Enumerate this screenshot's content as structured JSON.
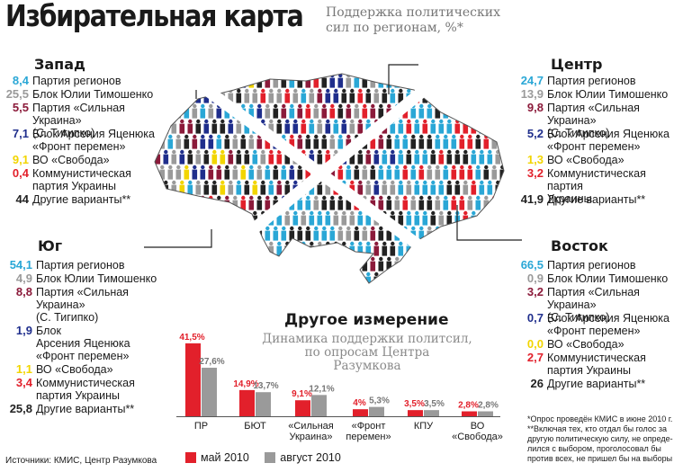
{
  "header": {
    "title": "Избирательная карта",
    "subtitle_line1": "Поддержка политических",
    "subtitle_line2": "сил по регионам, %*"
  },
  "colors": {
    "party_regions": "#2aa7d6",
    "tymoshenko": "#9a9a9a",
    "tigipko": "#8b1a3a",
    "yatsenyuk": "#1f2e8c",
    "svoboda": "#f2d500",
    "kpu": "#e2202b",
    "other": "#222222",
    "may": "#e2202b",
    "august": "#9a9a9a"
  },
  "regions": [
    {
      "title": "Запад",
      "rows": [
        {
          "value": "8,4",
          "label_lines": [
            "Партия регионов"
          ],
          "color": "party_regions"
        },
        {
          "value": "25,5",
          "label_lines": [
            "Блок Юлии Тимошенко"
          ],
          "color": "tymoshenko"
        },
        {
          "value": "5,5",
          "label_lines": [
            "Партия «Сильная Украина»",
            "(С. Тигипко)"
          ],
          "color": "tigipko"
        },
        {
          "value": "7,1",
          "label_lines": [
            "Блок Арсения Яценюка",
            "«Фронт перемен»"
          ],
          "color": "yatsenyuk"
        },
        {
          "value": "9,1",
          "label_lines": [
            "ВО «Свобода»"
          ],
          "color": "svoboda"
        },
        {
          "value": "0,4",
          "label_lines": [
            "Коммунистическая",
            "партия Украины"
          ],
          "color": "kpu"
        },
        {
          "value": "44",
          "label_lines": [
            "Другие варианты**"
          ],
          "color": "other"
        }
      ]
    },
    {
      "title": "Центр",
      "rows": [
        {
          "value": "24,7",
          "label_lines": [
            "Партия регионов"
          ],
          "color": "party_regions"
        },
        {
          "value": "13,9",
          "label_lines": [
            "Блок Юлии Тимошенко"
          ],
          "color": "tymoshenko"
        },
        {
          "value": "9,8",
          "label_lines": [
            "Партия «Сильная Украина»",
            "(С. Тигипко)"
          ],
          "color": "tigipko"
        },
        {
          "value": "5,2",
          "label_lines": [
            "Блок Арсения Яценюка",
            "«Фронт перемен»"
          ],
          "color": "yatsenyuk"
        },
        {
          "value": "1,3",
          "label_lines": [
            "ВО «Свобода»"
          ],
          "color": "svoboda"
        },
        {
          "value": "3,2",
          "label_lines": [
            "Коммунистическая партия",
            "Украины"
          ],
          "color": "kpu"
        },
        {
          "value": "41,9",
          "label_lines": [
            "Другие варианты**"
          ],
          "color": "other"
        }
      ]
    },
    {
      "title": "Юг",
      "rows": [
        {
          "value": "54,1",
          "label_lines": [
            "Партия регионов"
          ],
          "color": "party_regions"
        },
        {
          "value": "4,9",
          "label_lines": [
            "Блок Юлии Тимошенко"
          ],
          "color": "tymoshenko"
        },
        {
          "value": "8,8",
          "label_lines": [
            "Партия «Сильная",
            "Украина»",
            "(С. Тигипко)"
          ],
          "color": "tigipko"
        },
        {
          "value": "1,9",
          "label_lines": [
            "Блок",
            "Арсения Яценюка",
            "«Фронт перемен»"
          ],
          "color": "yatsenyuk"
        },
        {
          "value": "1,1",
          "label_lines": [
            "ВО «Свобода»"
          ],
          "color": "svoboda"
        },
        {
          "value": "3,4",
          "label_lines": [
            "Коммунистическая",
            "партия Украины"
          ],
          "color": "kpu"
        },
        {
          "value": "25,8",
          "label_lines": [
            "Другие варианты**"
          ],
          "color": "other"
        }
      ]
    },
    {
      "title": "Восток",
      "rows": [
        {
          "value": "66,5",
          "label_lines": [
            "Партия регионов"
          ],
          "color": "party_regions"
        },
        {
          "value": "0,9",
          "label_lines": [
            "Блок Юлии Тимошенко"
          ],
          "color": "tymoshenko"
        },
        {
          "value": "3,2",
          "label_lines": [
            "Партия «Сильная Украина»",
            "(С. Тигипко)"
          ],
          "color": "tigipko"
        },
        {
          "value": "0,7",
          "label_lines": [
            "Блок Арсения Яценюка",
            "«Фронт перемен»"
          ],
          "color": "yatsenyuk"
        },
        {
          "value": "0,0",
          "label_lines": [
            "ВО «Свобода»"
          ],
          "color": "svoboda"
        },
        {
          "value": "2,7",
          "label_lines": [
            "Коммунистическая",
            "партия Украины"
          ],
          "color": "kpu"
        },
        {
          "value": "26",
          "label_lines": [
            "Другие варианты**"
          ],
          "color": "other"
        }
      ]
    }
  ],
  "section2": {
    "title": "Другое измерение",
    "subtitle_lines": [
      "Динамика поддержки политсил,",
      "по опросам Центра",
      "Разумкова"
    ]
  },
  "chart_data": {
    "type": "bar",
    "categories": [
      "ПР",
      "БЮТ",
      "«Сильная Украина»",
      "«Фронт перемен»",
      "КПУ",
      "ВО «Свобода»"
    ],
    "category_label_lines": [
      [
        "ПР"
      ],
      [
        "БЮТ"
      ],
      [
        "«Сильная",
        "Украина»"
      ],
      [
        "«Фронт",
        "перемен»"
      ],
      [
        "КПУ"
      ],
      [
        "ВО",
        "«Свобода»"
      ]
    ],
    "series": [
      {
        "name": "май 2010",
        "values": [
          41.5,
          14.9,
          9.1,
          4,
          3.5,
          2.8
        ],
        "labels": [
          "41,5%",
          "14,9%",
          "9,1%",
          "4%",
          "3,5%",
          "2,8%"
        ]
      },
      {
        "name": "август 2010",
        "values": [
          27.6,
          13.7,
          12.1,
          5.3,
          3.5,
          2.8
        ],
        "labels": [
          "27,6%",
          "13,7%",
          "12,1%",
          "5,3%",
          "3,5%",
          "2,8%"
        ]
      }
    ],
    "ylim": [
      0,
      45
    ],
    "legend": "bottom-left"
  },
  "source": "Источники: КМИС, Центр Разумкова",
  "footnotes": [
    "*Опрос проведён КМИС в июне 2010 г.",
    "**Включая тех, кто отдал бы голос за",
    "другую политическую силу, не опреде-",
    "лился с выбором, проголосовал бы",
    "против всех, не пришел бы на выборы"
  ]
}
